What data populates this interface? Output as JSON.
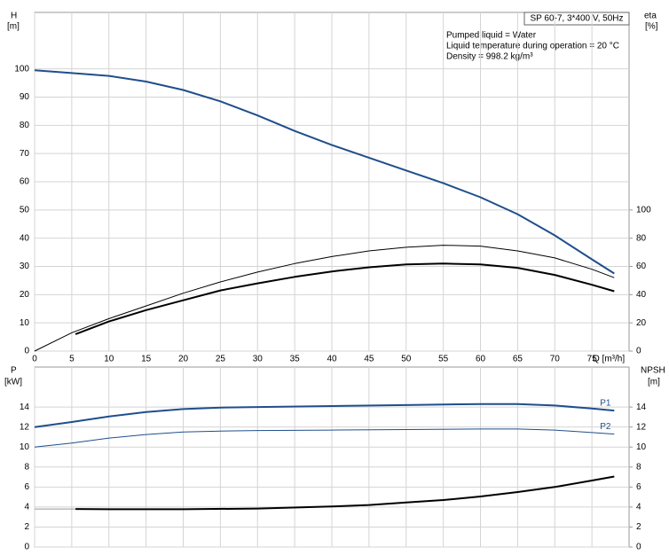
{
  "chart_data": [
    {
      "type": "line",
      "title": "SP 60-7, 3*400 V, 50Hz",
      "annotations": [
        "Pumped liquid = Water",
        "Liquid temperature during operation = 20 °C",
        "Density = 998.2 kg/m³"
      ],
      "y_label": "H",
      "y_unit": "[m]",
      "y2_label": "eta",
      "y2_unit": "[%]",
      "x_label": "Q [m³/h]",
      "xlim": [
        0,
        80
      ],
      "xticks": [
        0,
        5,
        10,
        15,
        20,
        25,
        30,
        35,
        40,
        45,
        50,
        55,
        60,
        65,
        70,
        75
      ],
      "ylim": [
        0,
        120
      ],
      "yticks": [
        0,
        10,
        20,
        30,
        40,
        50,
        60,
        70,
        80,
        90,
        100
      ],
      "y2lim": [
        0,
        240
      ],
      "y2ticks": [
        0,
        20,
        40,
        60,
        80,
        100
      ],
      "grid": true,
      "series": [
        {
          "color": "#1f4e8c",
          "line_width": 2,
          "x": [
            0,
            5,
            10,
            15,
            20,
            25,
            30,
            35,
            40,
            45,
            50,
            55,
            60,
            65,
            70,
            75,
            78
          ],
          "values": [
            99.5,
            98.5,
            97.5,
            95.5,
            92.5,
            88.5,
            83.5,
            78,
            73,
            68.5,
            64,
            59.5,
            54.5,
            48.5,
            41,
            32.5,
            27.5
          ]
        },
        {
          "color": "#000000",
          "line_width": 1,
          "axis": "y2",
          "x": [
            0,
            5,
            10,
            15,
            20,
            25,
            30,
            35,
            40,
            45,
            50,
            55,
            60,
            65,
            70,
            75,
            78
          ],
          "values": [
            0,
            13,
            23,
            32,
            41,
            49,
            56,
            62,
            67,
            71,
            73.6,
            75,
            74.4,
            71,
            66,
            58,
            52
          ]
        },
        {
          "color": "#000000",
          "line_width": 2,
          "axis": "y2",
          "x": [
            5.5,
            10,
            15,
            20,
            25,
            30,
            35,
            40,
            45,
            50,
            55,
            60,
            65,
            70,
            75,
            78
          ],
          "values": [
            12,
            21,
            29,
            36,
            43,
            48,
            52.6,
            56.4,
            59.4,
            61.4,
            62,
            61.4,
            59,
            54,
            47,
            42.4
          ]
        }
      ]
    },
    {
      "type": "line",
      "y_label": "P",
      "y_unit": "[kW]",
      "y2_label": "NPSH",
      "y2_unit": "[m]",
      "xlim": [
        0,
        80
      ],
      "ylim": [
        0,
        18
      ],
      "yticks": [
        0,
        2,
        4,
        6,
        8,
        10,
        12,
        14
      ],
      "y2lim": [
        0,
        18
      ],
      "y2ticks": [
        0,
        2,
        4,
        6,
        8,
        10,
        12,
        14
      ],
      "grid": true,
      "series": [
        {
          "name": "P1",
          "color": "#1f4e8c",
          "line_width": 2,
          "x": [
            0,
            5,
            10,
            15,
            20,
            25,
            30,
            40,
            50,
            60,
            65,
            70,
            75,
            78
          ],
          "values": [
            12,
            12.5,
            13.05,
            13.5,
            13.8,
            13.95,
            14,
            14.1,
            14.2,
            14.3,
            14.3,
            14.15,
            13.85,
            13.65
          ]
        },
        {
          "name": "P2",
          "color": "#1f4e8c",
          "line_width": 1,
          "x": [
            0,
            5,
            10,
            15,
            20,
            25,
            30,
            40,
            50,
            60,
            65,
            70,
            75,
            78
          ],
          "values": [
            10,
            10.4,
            10.9,
            11.25,
            11.5,
            11.6,
            11.65,
            11.7,
            11.75,
            11.8,
            11.8,
            11.7,
            11.45,
            11.3
          ]
        },
        {
          "color": "#999999",
          "line_width": 1,
          "axis": "y2",
          "x": [
            0,
            5.5
          ],
          "values": [
            3.8,
            3.8
          ]
        },
        {
          "color": "#000000",
          "line_width": 2,
          "axis": "y2",
          "x": [
            5.5,
            10,
            20,
            30,
            40,
            45,
            50,
            55,
            60,
            65,
            70,
            75,
            78
          ],
          "values": [
            3.8,
            3.78,
            3.78,
            3.85,
            4.05,
            4.2,
            4.45,
            4.7,
            5.05,
            5.5,
            6,
            6.65,
            7.05
          ]
        }
      ]
    }
  ]
}
